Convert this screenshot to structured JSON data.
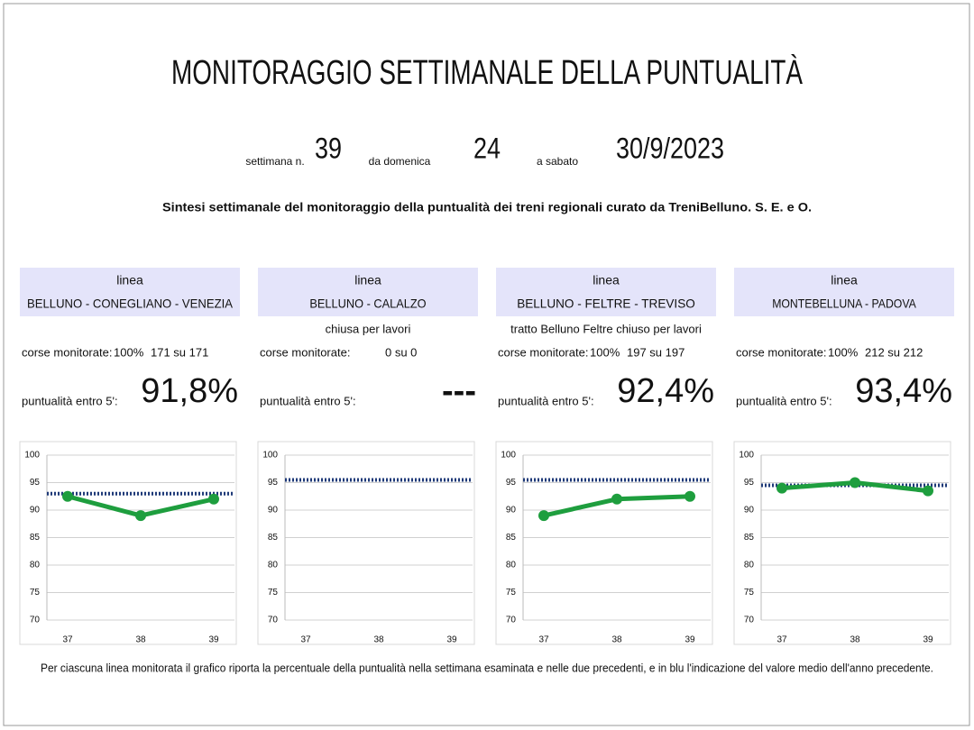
{
  "title": "MONITORAGGIO SETTIMANALE DELLA PUNTUALITÀ",
  "period": {
    "week_label": "settimana n.",
    "week": "39",
    "from_label": "da domenica",
    "from": "24",
    "to_label": "a sabato",
    "to": "30/9/2023"
  },
  "subtitle": "Sintesi settimanale del monitoraggio della puntualità dei treni regionali curato da TreniBelluno.   S. E. e O.",
  "panels": [
    {
      "line_label": "linea",
      "line": "BELLUNO - CONEGLIANO - VENEZIA",
      "monitored_label": "corse monitorate:",
      "monitored_pct": "100%",
      "monitored_count": "171 su 171",
      "punctuality_label": "puntualità entro 5':",
      "punctuality": "91,8%"
    },
    {
      "line_label": "linea",
      "line": "BELLUNO - CALALZO",
      "note": "chiusa per lavori",
      "monitored_label": "corse monitorate:",
      "monitored_count": "0 su 0",
      "punctuality_label": "puntualità entro 5':",
      "punctuality": "---"
    },
    {
      "line_label": "linea",
      "line": "BELLUNO - FELTRE - TREVISO",
      "note": "tratto Belluno Feltre chiuso per lavori",
      "monitored_label": "corse monitorate:",
      "monitored_pct": "100%",
      "monitored_count": "197 su 197",
      "punctuality_label": "puntualità entro 5':",
      "punctuality": "92,4%"
    },
    {
      "line_label": "linea",
      "line": "MONTEBELLUNA - PADOVA",
      "monitored_label": "corse monitorate:",
      "monitored_pct": "100%",
      "monitored_count": "212 su 212",
      "punctuality_label": "puntualità entro 5':",
      "punctuality": "93,4%"
    }
  ],
  "chart_data": [
    {
      "type": "line",
      "categories": [
        "37",
        "38",
        "39"
      ],
      "values": [
        92.5,
        89,
        92
      ],
      "color": "#1e9e3e",
      "reference": 93,
      "reference_color": "#1f3a78",
      "ylim": [
        70,
        100
      ],
      "yticks": [
        70,
        75,
        80,
        85,
        90,
        95,
        100
      ],
      "grid": true
    },
    {
      "type": "line",
      "categories": [
        "37",
        "38",
        "39"
      ],
      "values": [
        null,
        null,
        null
      ],
      "color": "#1e9e3e",
      "reference": 95.5,
      "reference_color": "#1f3a78",
      "ylim": [
        70,
        100
      ],
      "yticks": [
        70,
        75,
        80,
        85,
        90,
        95,
        100
      ],
      "grid": true
    },
    {
      "type": "line",
      "categories": [
        "37",
        "38",
        "39"
      ],
      "values": [
        89,
        92,
        92.5
      ],
      "color": "#1e9e3e",
      "reference": 95.5,
      "reference_color": "#1f3a78",
      "ylim": [
        70,
        100
      ],
      "yticks": [
        70,
        75,
        80,
        85,
        90,
        95,
        100
      ],
      "grid": true
    },
    {
      "type": "line",
      "categories": [
        "37",
        "38",
        "39"
      ],
      "values": [
        94,
        95,
        93.5
      ],
      "color": "#1e9e3e",
      "reference": 94.5,
      "reference_color": "#1f3a78",
      "ylim": [
        70,
        100
      ],
      "yticks": [
        70,
        75,
        80,
        85,
        90,
        95,
        100
      ],
      "grid": true
    }
  ],
  "footer": "Per ciascuna linea monitorata il grafico riporta la percentuale della puntualità nella settimana esaminata e nelle due precedenti, e in blu l'indicazione del valore medio dell'anno precedente."
}
